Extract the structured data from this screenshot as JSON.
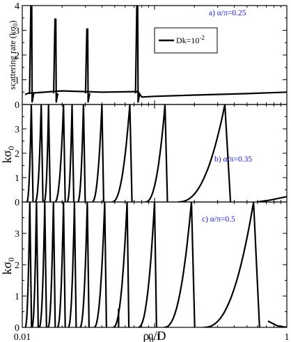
{
  "figure": {
    "x_axis_label": {
      "main": "ρ",
      "sub": "0",
      "tail": "/D"
    },
    "x_tick_labels": [
      "0.01",
      "0.1",
      "1"
    ]
  },
  "chart_data": [
    {
      "type": "line",
      "panel": "a",
      "annotation": "a) α/π=0.25",
      "ylabel": {
        "main": "scattering rate (kσ",
        "sub": "0",
        "tail": ")"
      },
      "legend": {
        "label_main": "Dk=10",
        "label_sup": "-2",
        "placement": "upper-center"
      },
      "xscale": "log",
      "xlim": [
        0.01,
        1
      ],
      "ylim": [
        0,
        4
      ],
      "y_ticks": [
        0,
        1,
        2,
        3,
        4
      ],
      "grid": false,
      "baseline": {
        "x": [
          0.0105,
          0.011,
          0.02,
          0.04,
          0.075,
          0.08,
          0.1,
          0.2,
          0.5,
          1.0
        ],
        "y": [
          0.4,
          0.45,
          0.55,
          0.5,
          0.52,
          0.3,
          0.33,
          0.38,
          0.44,
          0.5
        ]
      },
      "resonances": [
        {
          "x": 0.0117,
          "peak": 4.0
        },
        {
          "x": 0.0178,
          "peak": 3.45
        },
        {
          "x": 0.031,
          "peak": 3.05
        },
        {
          "x": 0.074,
          "peak": 4.0
        }
      ]
    },
    {
      "type": "line",
      "panel": "b",
      "annotation": "b) α/π=0.35",
      "ylabel": {
        "main": "kσ",
        "sub": "0",
        "tail": ""
      },
      "xscale": "log",
      "xlim": [
        0.01,
        1
      ],
      "ylim": [
        0,
        4
      ],
      "y_ticks": [
        0,
        1,
        2,
        3
      ],
      "grid": false,
      "peaks": [
        {
          "x": 0.0117,
          "peak": 4.0,
          "min_x": 0.0108
        },
        {
          "x": 0.0139,
          "peak": 4.0,
          "min_x": 0.0125
        },
        {
          "x": 0.0158,
          "peak": 4.0,
          "min_x": 0.0146
        },
        {
          "x": 0.0205,
          "peak": 4.0,
          "min_x": 0.0176
        },
        {
          "x": 0.0238,
          "peak": 4.0,
          "min_x": 0.0218
        },
        {
          "x": 0.029,
          "peak": 4.0,
          "min_x": 0.0262
        },
        {
          "x": 0.04,
          "peak": 4.0,
          "min_x": 0.0336
        },
        {
          "x": 0.065,
          "peak": 4.0,
          "min_x": 0.0475
        },
        {
          "x": 0.12,
          "peak": 4.0,
          "min_x": 0.085
        },
        {
          "x": 0.34,
          "peak": 4.0,
          "min_x": 0.15
        }
      ],
      "tail": {
        "x": [
          0.6,
          0.75,
          1.0
        ],
        "y": [
          0.0,
          0.08,
          0.22
        ]
      }
    },
    {
      "type": "line",
      "panel": "c",
      "annotation": "c) α/π=0.5",
      "ylabel": {
        "main": "kσ",
        "sub": "0",
        "tail": ""
      },
      "xscale": "log",
      "xlim": [
        0.01,
        1
      ],
      "ylim": [
        0,
        4
      ],
      "y_ticks": [
        0,
        1,
        2,
        3
      ],
      "grid": false,
      "peaks": [
        {
          "x": 0.0114,
          "peak": 4.0,
          "min_x": 0.0105
        },
        {
          "x": 0.0128,
          "peak": 4.0,
          "min_x": 0.0118
        },
        {
          "x": 0.0148,
          "peak": 4.0,
          "min_x": 0.0134
        },
        {
          "x": 0.0172,
          "peak": 4.0,
          "min_x": 0.0156
        },
        {
          "x": 0.0205,
          "peak": 4.0,
          "min_x": 0.0184
        },
        {
          "x": 0.0248,
          "peak": 4.0,
          "min_x": 0.0222
        },
        {
          "x": 0.031,
          "peak": 4.0,
          "min_x": 0.0272
        },
        {
          "x": 0.042,
          "peak": 4.0,
          "min_x": 0.0348
        },
        {
          "x": 0.062,
          "peak": 4.0,
          "min_x": 0.0485
        },
        {
          "x": 0.1,
          "peak": 4.0,
          "min_x": 0.075
        },
        {
          "x": 0.19,
          "peak": 4.0,
          "min_x": 0.118
        },
        {
          "x": 0.56,
          "peak": 4.0,
          "min_x": 0.235
        }
      ],
      "spike": {
        "x": 0.0535,
        "y": 0.6
      },
      "tail": {
        "x": [
          0.72,
          0.85,
          1.0
        ],
        "y": [
          0.2,
          0.05,
          0.0
        ]
      }
    }
  ]
}
